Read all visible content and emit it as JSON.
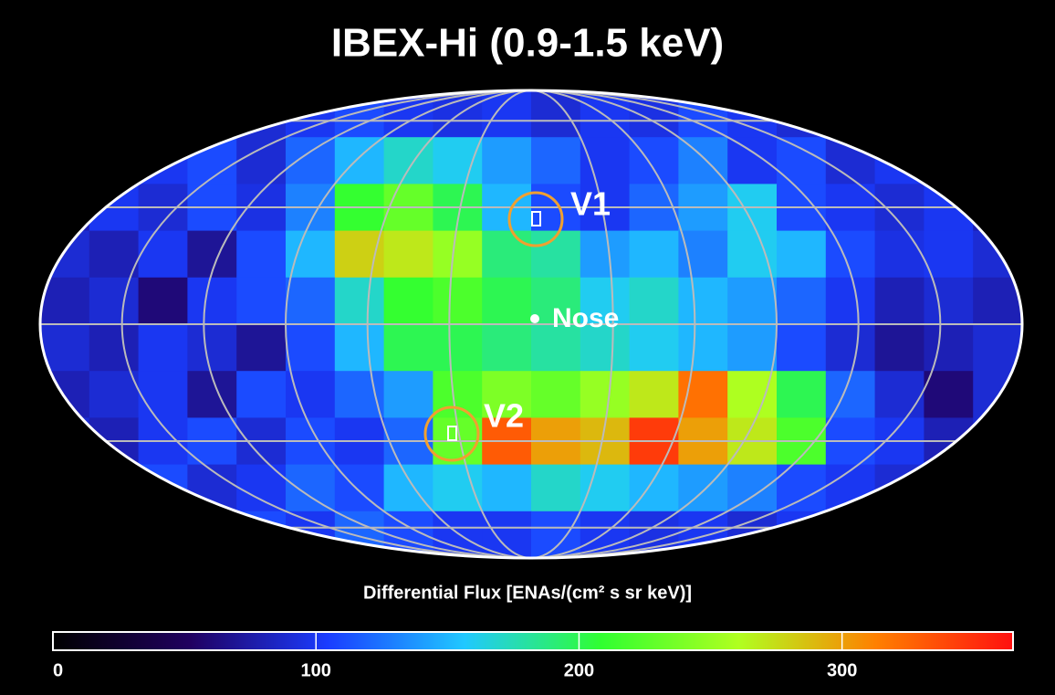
{
  "title": "IBEX-Hi (0.9-1.5 keV)",
  "map": {
    "values": [
      [
        90,
        90,
        95,
        100,
        90,
        100,
        110,
        100,
        95,
        100,
        90,
        100,
        95,
        110,
        100,
        90,
        95,
        100,
        90,
        90
      ],
      [
        90,
        95,
        100,
        110,
        90,
        120,
        150,
        170,
        160,
        140,
        120,
        100,
        110,
        130,
        100,
        110,
        90,
        100,
        95,
        90
      ],
      [
        80,
        100,
        90,
        110,
        95,
        130,
        210,
        230,
        200,
        150,
        110,
        100,
        120,
        140,
        160,
        110,
        100,
        90,
        100,
        80
      ],
      [
        90,
        80,
        100,
        70,
        110,
        150,
        280,
        270,
        250,
        190,
        180,
        140,
        150,
        130,
        160,
        150,
        110,
        95,
        100,
        90
      ],
      [
        80,
        90,
        60,
        100,
        110,
        120,
        170,
        210,
        220,
        200,
        190,
        160,
        170,
        150,
        140,
        120,
        100,
        80,
        90,
        80
      ],
      [
        90,
        80,
        100,
        90,
        70,
        110,
        150,
        200,
        200,
        190,
        180,
        170,
        160,
        150,
        140,
        110,
        90,
        70,
        80,
        90
      ],
      [
        80,
        90,
        100,
        70,
        110,
        100,
        120,
        140,
        220,
        240,
        230,
        250,
        270,
        320,
        260,
        200,
        120,
        90,
        60,
        90
      ],
      [
        90,
        80,
        100,
        110,
        90,
        110,
        100,
        120,
        230,
        330,
        300,
        290,
        345,
        300,
        270,
        220,
        110,
        100,
        80,
        90
      ],
      [
        90,
        100,
        110,
        90,
        100,
        120,
        110,
        150,
        160,
        150,
        170,
        160,
        150,
        140,
        130,
        110,
        100,
        90,
        100,
        90
      ],
      [
        90,
        95,
        100,
        100,
        110,
        100,
        120,
        110,
        100,
        100,
        110,
        100,
        95,
        100,
        90,
        100,
        95,
        90,
        100,
        90
      ]
    ]
  },
  "annotations": {
    "v1": "V1",
    "v2": "V2",
    "nose": "Nose"
  },
  "colorbar": {
    "label": "Differential Flux [ENAs/(cm² s sr keV)]",
    "clim": [
      0,
      365
    ],
    "ticks": [
      0,
      100,
      200,
      300
    ],
    "colormap": [
      "#000000",
      "#200060",
      "#1a3cff",
      "#20c8ff",
      "#30ff30",
      "#b0ff20",
      "#ff8000",
      "#ff1010"
    ]
  }
}
